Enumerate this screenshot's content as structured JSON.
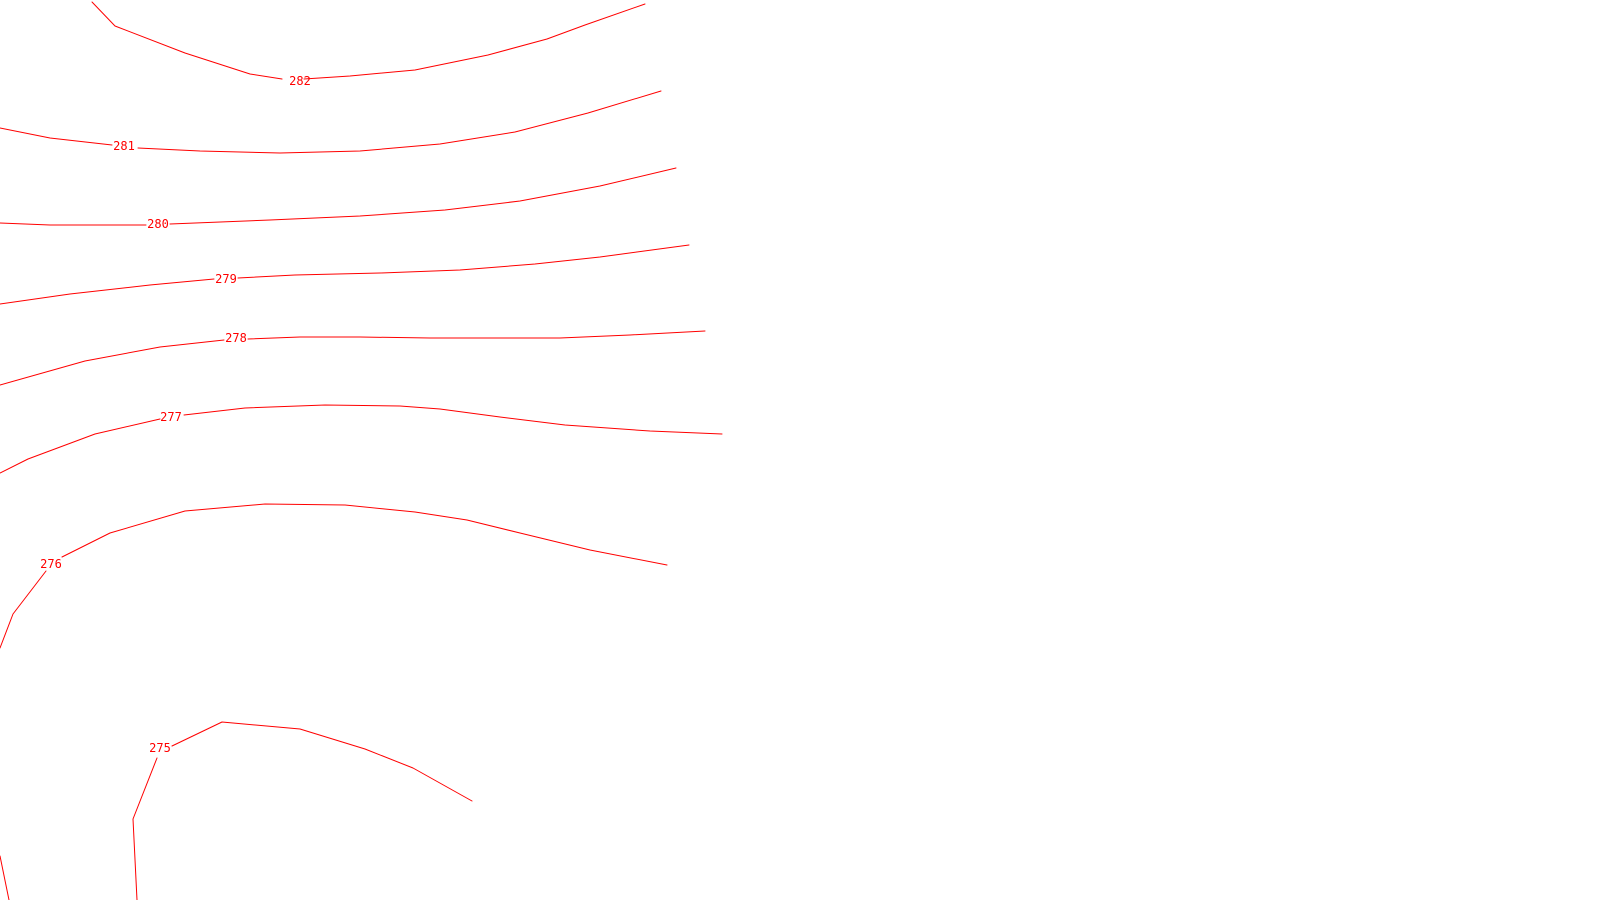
{
  "map": {
    "type": "contour",
    "line_color": "#ff0000",
    "background_color": "#ffffff",
    "contours": [
      {
        "id": "c282",
        "label": "282"
      },
      {
        "id": "c281",
        "label": "281"
      },
      {
        "id": "c280",
        "label": "280"
      },
      {
        "id": "c279",
        "label": "279"
      },
      {
        "id": "c278",
        "label": "278"
      },
      {
        "id": "c277",
        "label": "277"
      },
      {
        "id": "c276",
        "label": "276"
      },
      {
        "id": "c275",
        "label": "275"
      }
    ]
  }
}
